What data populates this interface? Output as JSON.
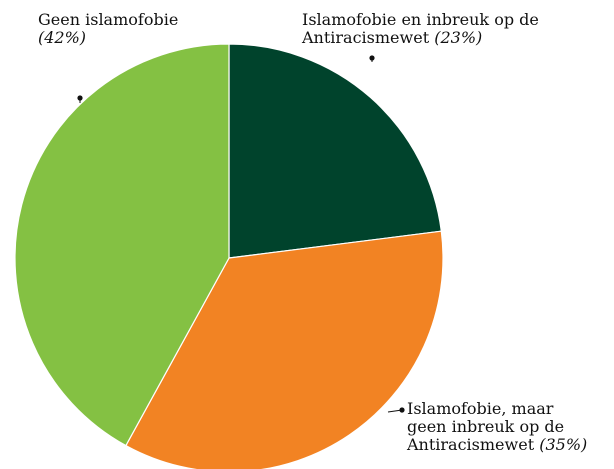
{
  "chart_data": {
    "type": "pie",
    "slices": [
      {
        "label_lines": [
          "Islamofobie en inbreuk op de",
          "Antiracismewet"
        ],
        "percent_label": "(23%)",
        "value": 23,
        "color": "#00432c"
      },
      {
        "label_lines": [
          "Islamofobie, maar",
          "geen inbreuk op de",
          "Antiracismewet"
        ],
        "percent_label": "(35%)",
        "value": 35,
        "color": "#f28323"
      },
      {
        "label_lines": [
          "Geen islamofobie"
        ],
        "percent_label": "(42%)",
        "value": 42,
        "color": "#84c143"
      }
    ],
    "start_angle": "12 o'clock",
    "direction": "clockwise",
    "legend": "none",
    "label_style": "callout lines with dot markers"
  }
}
